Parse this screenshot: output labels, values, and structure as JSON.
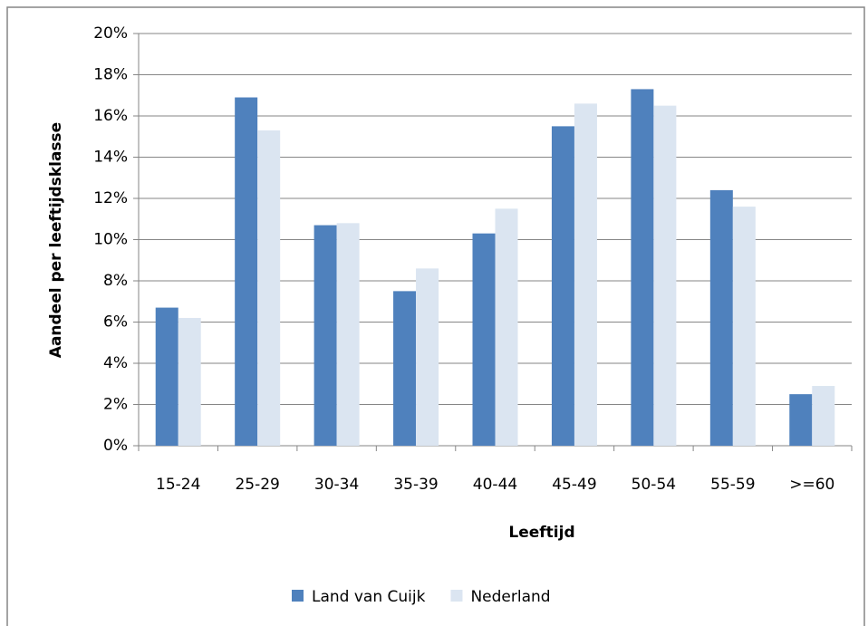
{
  "chart_data": {
    "type": "bar",
    "x_label": "Leeftijd",
    "y_label": "Aandeel per leeftijdsklasse",
    "categories": [
      "15-24",
      "25-29",
      "30-34",
      "35-39",
      "40-44",
      "45-49",
      "50-54",
      "55-59",
      ">=60"
    ],
    "series": [
      {
        "name": "Land van Cuijk",
        "color": "#4f81bd",
        "values": [
          6.7,
          16.9,
          10.7,
          7.5,
          10.3,
          15.5,
          17.3,
          12.4,
          2.5
        ]
      },
      {
        "name": "Nederland",
        "color": "#dbe5f1",
        "values": [
          6.2,
          15.3,
          10.8,
          8.6,
          11.5,
          16.6,
          16.5,
          11.6,
          2.9
        ]
      }
    ],
    "ylim": [
      0,
      20
    ],
    "yticks": [
      {
        "value": 0,
        "label": "0%"
      },
      {
        "value": 2,
        "label": "2%"
      },
      {
        "value": 4,
        "label": "4%"
      },
      {
        "value": 6,
        "label": "6%"
      },
      {
        "value": 8,
        "label": "8%"
      },
      {
        "value": 10,
        "label": "10%"
      },
      {
        "value": 12,
        "label": "12%"
      },
      {
        "value": 14,
        "label": "14%"
      },
      {
        "value": 16,
        "label": "16%"
      },
      {
        "value": 18,
        "label": "18%"
      },
      {
        "value": 20,
        "label": "20%"
      }
    ],
    "grid": true,
    "legend": "bottom"
  }
}
